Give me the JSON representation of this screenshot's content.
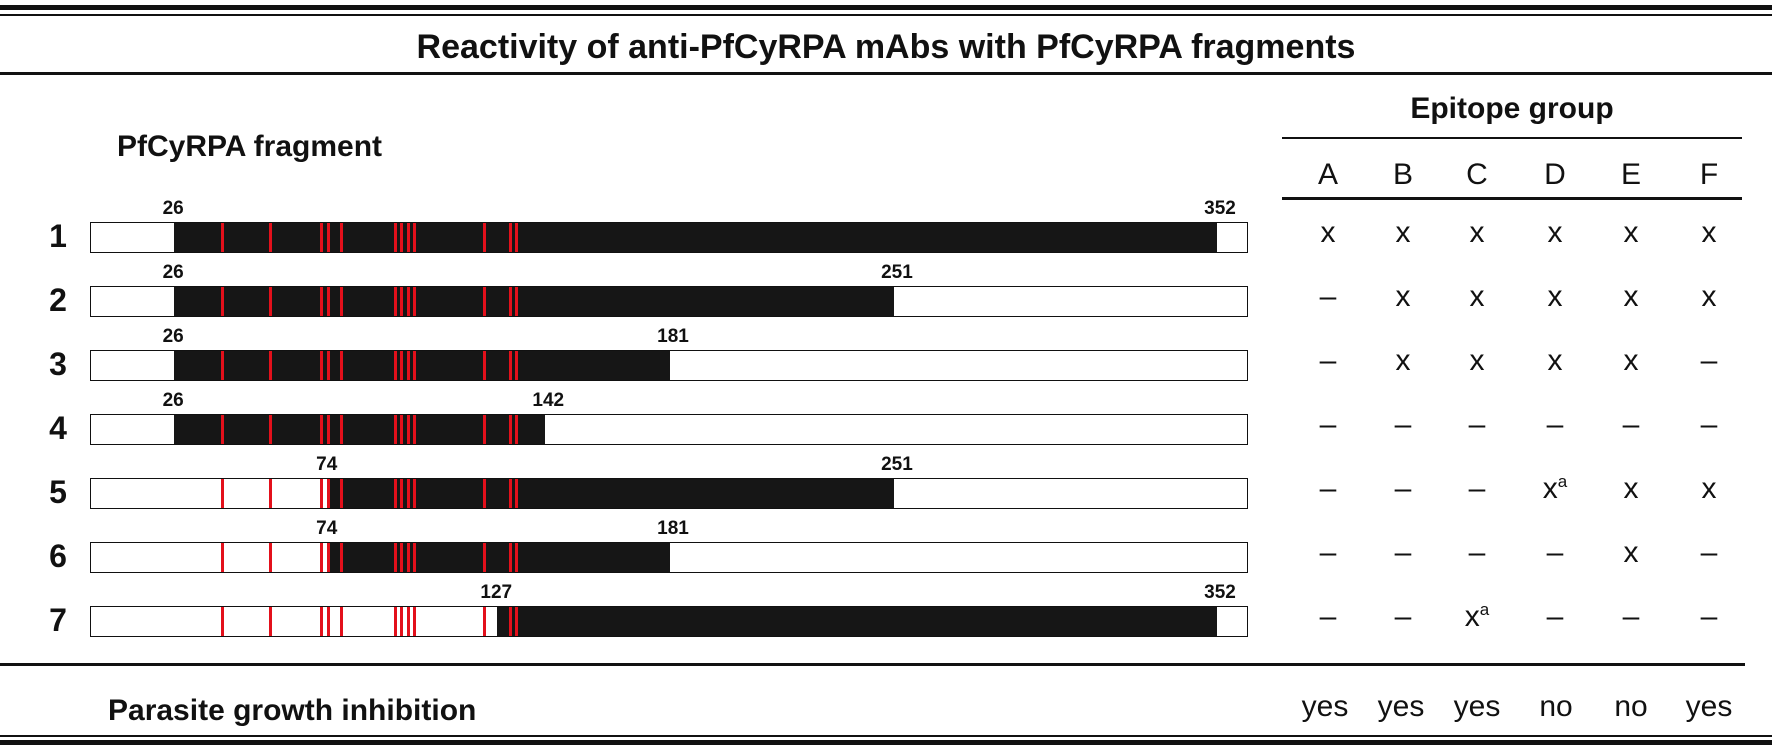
{
  "title": "Reactivity of anti-PfCyRPA mAbs with PfCyRPA fragments",
  "fragment_header": "PfCyRPA fragment",
  "epitope_header": "Epitope group",
  "groups": [
    "A",
    "B",
    "C",
    "D",
    "E",
    "F"
  ],
  "protein_length": 362,
  "red_marks": [
    41,
    56,
    72,
    74,
    78,
    95,
    97,
    99,
    101,
    123,
    131,
    133
  ],
  "rows": [
    {
      "num": "1",
      "start": 26,
      "end": 352,
      "start_label": "26",
      "end_label": "352",
      "cells": [
        {
          "t": "x",
          "s": ""
        },
        {
          "t": "x",
          "s": ""
        },
        {
          "t": "x",
          "s": ""
        },
        {
          "t": "x",
          "s": ""
        },
        {
          "t": "x",
          "s": ""
        },
        {
          "t": "x",
          "s": ""
        }
      ]
    },
    {
      "num": "2",
      "start": 26,
      "end": 251,
      "start_label": "26",
      "end_label": "251",
      "cells": [
        {
          "t": "–",
          "s": ""
        },
        {
          "t": "x",
          "s": ""
        },
        {
          "t": "x",
          "s": ""
        },
        {
          "t": "x",
          "s": ""
        },
        {
          "t": "x",
          "s": ""
        },
        {
          "t": "x",
          "s": ""
        }
      ]
    },
    {
      "num": "3",
      "start": 26,
      "end": 181,
      "start_label": "26",
      "end_label": "181",
      "cells": [
        {
          "t": "–",
          "s": ""
        },
        {
          "t": "x",
          "s": ""
        },
        {
          "t": "x",
          "s": ""
        },
        {
          "t": "x",
          "s": ""
        },
        {
          "t": "x",
          "s": ""
        },
        {
          "t": "–",
          "s": ""
        }
      ]
    },
    {
      "num": "4",
      "start": 26,
      "end": 142,
      "start_label": "26",
      "end_label": "142",
      "cells": [
        {
          "t": "–",
          "s": ""
        },
        {
          "t": "–",
          "s": ""
        },
        {
          "t": "–",
          "s": ""
        },
        {
          "t": "–",
          "s": ""
        },
        {
          "t": "–",
          "s": ""
        },
        {
          "t": "–",
          "s": ""
        }
      ]
    },
    {
      "num": "5",
      "start": 74,
      "end": 251,
      "start_label": "74",
      "end_label": "251",
      "cells": [
        {
          "t": "–",
          "s": ""
        },
        {
          "t": "–",
          "s": ""
        },
        {
          "t": "–",
          "s": ""
        },
        {
          "t": "x",
          "s": "a"
        },
        {
          "t": "x",
          "s": ""
        },
        {
          "t": "x",
          "s": ""
        }
      ]
    },
    {
      "num": "6",
      "start": 74,
      "end": 181,
      "start_label": "74",
      "end_label": "181",
      "cells": [
        {
          "t": "–",
          "s": ""
        },
        {
          "t": "–",
          "s": ""
        },
        {
          "t": "–",
          "s": ""
        },
        {
          "t": "–",
          "s": ""
        },
        {
          "t": "x",
          "s": ""
        },
        {
          "t": "–",
          "s": ""
        }
      ]
    },
    {
      "num": "7",
      "start": 127,
      "end": 352,
      "start_label": "127",
      "end_label": "352",
      "cells": [
        {
          "t": "–",
          "s": ""
        },
        {
          "t": "–",
          "s": ""
        },
        {
          "t": "x",
          "s": "a"
        },
        {
          "t": "–",
          "s": ""
        },
        {
          "t": "–",
          "s": ""
        },
        {
          "t": "–",
          "s": ""
        }
      ]
    }
  ],
  "inhibition_label": "Parasite growth inhibition",
  "inhibition": [
    "yes",
    "yes",
    "yes",
    "no",
    "no",
    "yes"
  ],
  "colors": {
    "fill": "#161616",
    "marks": "#e3101b"
  }
}
